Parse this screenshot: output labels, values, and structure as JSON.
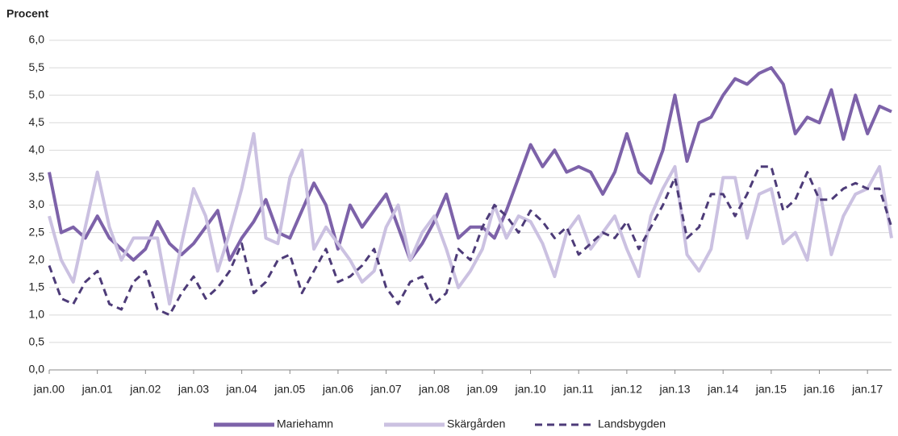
{
  "chart_data": {
    "type": "line",
    "y_label": "Procent",
    "categories": [
      "jan.00",
      null,
      null,
      null,
      "jan.01",
      null,
      null,
      null,
      "jan.02",
      null,
      null,
      null,
      "jan.03",
      null,
      null,
      null,
      "jan.04",
      null,
      null,
      null,
      "jan.05",
      null,
      null,
      null,
      "jan.06",
      null,
      null,
      null,
      "jan.07",
      null,
      null,
      null,
      "jan.08",
      null,
      null,
      null,
      "jan.09",
      null,
      null,
      null,
      "jan.10",
      null,
      null,
      null,
      "jan.11",
      null,
      null,
      null,
      "jan.12",
      null,
      null,
      null,
      "jan.13",
      null,
      null,
      null,
      "jan.14",
      null,
      null,
      null,
      "jan.15",
      null,
      null,
      null,
      "jan.16",
      null,
      null,
      null,
      "jan.17",
      null,
      null
    ],
    "series": [
      {
        "name": "Mariehamn",
        "color": "#7d62a9",
        "dashed": false,
        "values": [
          3.6,
          2.5,
          2.6,
          2.4,
          2.8,
          2.4,
          2.2,
          2.0,
          2.2,
          2.7,
          2.3,
          2.1,
          2.3,
          2.6,
          2.9,
          2.0,
          2.4,
          2.7,
          3.1,
          2.5,
          2.4,
          2.9,
          3.4,
          3.0,
          2.2,
          3.0,
          2.6,
          2.9,
          3.2,
          2.6,
          2.0,
          2.3,
          2.7,
          3.2,
          2.4,
          2.6,
          2.6,
          2.4,
          2.9,
          3.5,
          4.1,
          3.7,
          4.0,
          3.6,
          3.7,
          3.6,
          3.2,
          3.6,
          4.3,
          3.6,
          3.4,
          4.0,
          5.0,
          3.8,
          4.5,
          4.6,
          5.0,
          5.3,
          5.2,
          5.4,
          5.5,
          5.2,
          4.3,
          4.6,
          4.5,
          5.1,
          4.2,
          5.0,
          4.3,
          4.8,
          4.7
        ]
      },
      {
        "name": "Skärgården",
        "color": "#cbc1e1",
        "dashed": false,
        "values": [
          2.8,
          2.0,
          1.6,
          2.6,
          3.6,
          2.6,
          2.0,
          2.4,
          2.4,
          2.4,
          1.2,
          2.3,
          3.3,
          2.8,
          1.8,
          2.5,
          3.3,
          4.3,
          2.4,
          2.3,
          3.5,
          4.0,
          2.2,
          2.6,
          2.3,
          2.0,
          1.6,
          1.8,
          2.6,
          3.0,
          2.0,
          2.5,
          2.8,
          2.2,
          1.5,
          1.8,
          2.2,
          3.0,
          2.4,
          2.8,
          2.7,
          2.3,
          1.7,
          2.5,
          2.8,
          2.2,
          2.5,
          2.8,
          2.2,
          1.7,
          2.8,
          3.3,
          3.7,
          2.1,
          1.8,
          2.2,
          3.5,
          3.5,
          2.4,
          3.2,
          3.3,
          2.3,
          2.5,
          2.0,
          3.3,
          2.1,
          2.8,
          3.2,
          3.3,
          3.7,
          2.4
        ]
      },
      {
        "name": "Landsbygden",
        "color": "#4d3b78",
        "dashed": true,
        "values": [
          1.9,
          1.3,
          1.2,
          1.6,
          1.8,
          1.2,
          1.1,
          1.6,
          1.8,
          1.1,
          1.0,
          1.4,
          1.7,
          1.3,
          1.5,
          1.8,
          2.3,
          1.4,
          1.6,
          2.0,
          2.1,
          1.4,
          1.8,
          2.2,
          1.6,
          1.7,
          1.9,
          2.2,
          1.5,
          1.2,
          1.6,
          1.7,
          1.2,
          1.4,
          2.2,
          2.0,
          2.6,
          3.0,
          2.8,
          2.5,
          2.9,
          2.7,
          2.4,
          2.6,
          2.1,
          2.3,
          2.5,
          2.4,
          2.7,
          2.2,
          2.6,
          3.0,
          3.5,
          2.4,
          2.6,
          3.2,
          3.2,
          2.8,
          3.2,
          3.7,
          3.7,
          2.9,
          3.1,
          3.6,
          3.1,
          3.1,
          3.3,
          3.4,
          3.3,
          3.3,
          2.6
        ]
      }
    ],
    "ylim": [
      0,
      6
    ],
    "yticks": [
      {
        "value": 0,
        "label": "0,0"
      },
      {
        "value": 0.5,
        "label": "0,5"
      },
      {
        "value": 1,
        "label": "1,0"
      },
      {
        "value": 1.5,
        "label": "1,5"
      },
      {
        "value": 2,
        "label": "2,0"
      },
      {
        "value": 2.5,
        "label": "2,5"
      },
      {
        "value": 3,
        "label": "3,0"
      },
      {
        "value": 3.5,
        "label": "3,5"
      },
      {
        "value": 4,
        "label": "4,0"
      },
      {
        "value": 4.5,
        "label": "4,5"
      },
      {
        "value": 5,
        "label": "5,0"
      },
      {
        "value": 5.5,
        "label": "5,5"
      },
      {
        "value": 6,
        "label": "6,0"
      }
    ],
    "grid": true,
    "legend": "bottom"
  }
}
